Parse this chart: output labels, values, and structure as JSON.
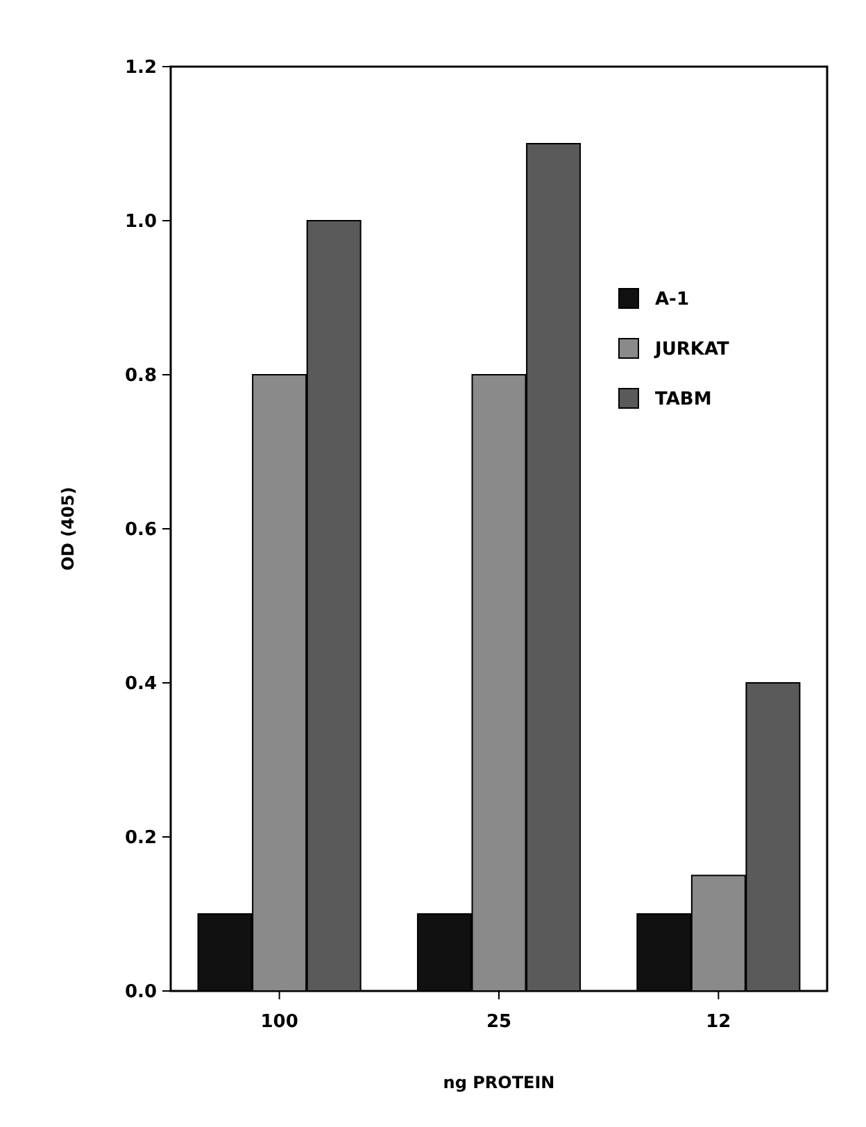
{
  "chart_data": {
    "type": "bar",
    "xlabel": "ng PROTEIN",
    "ylabel": "OD (405)",
    "categories": [
      "100",
      "25",
      "12"
    ],
    "series": [
      {
        "name": "A-1",
        "color": "#111111",
        "values": [
          0.1,
          0.1,
          0.1
        ]
      },
      {
        "name": "JURKAT",
        "color": "#8a8a8a",
        "values": [
          0.8,
          0.8,
          0.15
        ]
      },
      {
        "name": "TABM",
        "color": "#5a5a5a",
        "values": [
          1.0,
          1.1,
          0.4
        ]
      }
    ],
    "ylim": [
      0,
      1.2
    ],
    "yticks": [
      {
        "value": 0,
        "label": "0.0"
      },
      {
        "value": 0.2,
        "label": "0.2"
      },
      {
        "value": 0.4,
        "label": "0.4"
      },
      {
        "value": 0.6,
        "label": "0.6"
      },
      {
        "value": 0.8,
        "label": "0.8"
      },
      {
        "value": 1,
        "label": "1.0"
      },
      {
        "value": 1.2,
        "label": "1.2"
      }
    ],
    "grid": false,
    "legend": "right"
  }
}
